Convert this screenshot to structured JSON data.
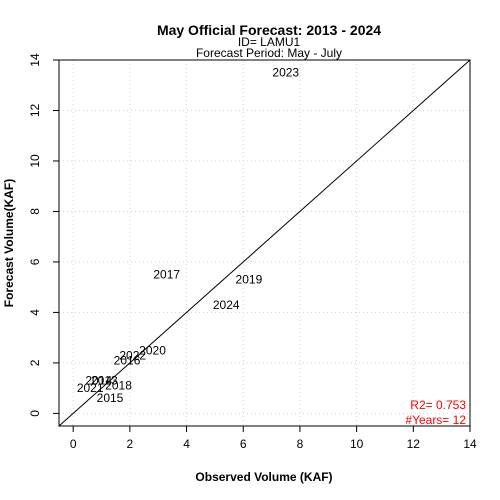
{
  "chart_data": {
    "type": "scatter",
    "title": "May Official Forecast: 2013 - 2024",
    "subtitle_id": "ID= LAMU1",
    "subtitle_period": "Forecast Period:  May - July",
    "xlabel": "Observed Volume (KAF)",
    "ylabel": "Forecast Volume(KAF)",
    "xlim": [
      -0.5,
      14
    ],
    "ylim": [
      -0.5,
      14
    ],
    "x_ticks": [
      0,
      2,
      4,
      6,
      8,
      10,
      12,
      14
    ],
    "y_ticks": [
      0,
      2,
      4,
      6,
      8,
      10,
      12,
      14
    ],
    "grid": true,
    "reference_line": "1:1",
    "point_labels_are_years": true,
    "points": [
      {
        "label": "2013",
        "x": 1.1,
        "y": 1.3
      },
      {
        "label": "2014",
        "x": 0.9,
        "y": 1.3
      },
      {
        "label": "2015",
        "x": 1.3,
        "y": 0.6
      },
      {
        "label": "2016",
        "x": 1.9,
        "y": 2.1
      },
      {
        "label": "2017",
        "x": 3.3,
        "y": 5.5
      },
      {
        "label": "2018",
        "x": 1.6,
        "y": 1.1
      },
      {
        "label": "2019",
        "x": 6.2,
        "y": 5.3
      },
      {
        "label": "2020",
        "x": 2.8,
        "y": 2.5
      },
      {
        "label": "2021",
        "x": 0.6,
        "y": 1.0
      },
      {
        "label": "2022",
        "x": 2.1,
        "y": 2.3
      },
      {
        "label": "2023",
        "x": 7.5,
        "y": 13.5
      },
      {
        "label": "2024",
        "x": 5.4,
        "y": 4.3
      }
    ],
    "stats": {
      "r2": "R2=  0.753",
      "years": "#Years=  12"
    },
    "colors": {
      "stat_text": "#ff0000",
      "grid": "#d3d3d3",
      "axis": "#000000"
    }
  }
}
